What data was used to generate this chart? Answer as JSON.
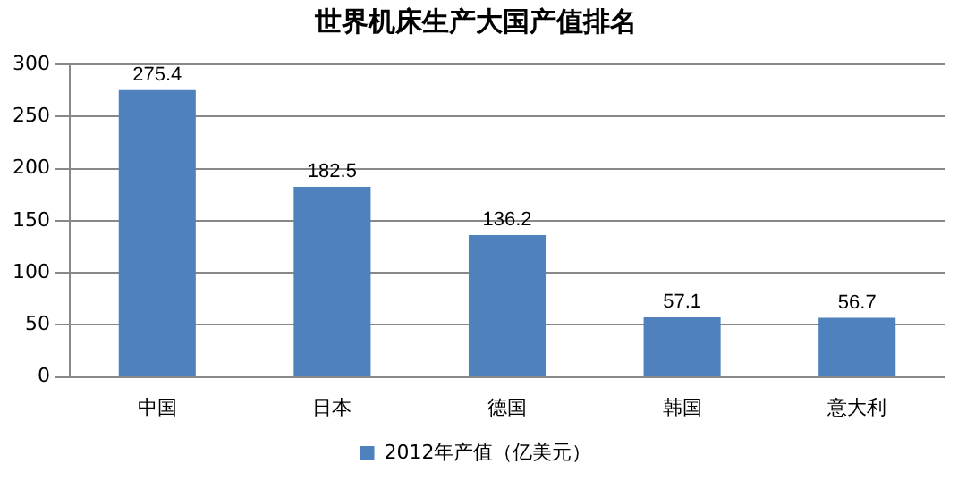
{
  "chart_data": {
    "type": "bar",
    "title": "世界机床生产大国产值排名",
    "categories": [
      "中国",
      "日本",
      "德国",
      "韩国",
      "意大利"
    ],
    "series": [
      {
        "name": "2012年产值（亿美元）",
        "color": "#4f81bd",
        "values": [
          275.4,
          182.5,
          136.2,
          57.1,
          56.7
        ]
      }
    ],
    "ylim": [
      0,
      300
    ],
    "yticks": [
      0,
      50,
      100,
      150,
      200,
      250,
      300
    ],
    "grid": "y",
    "legend": "bottom",
    "data_labels": true
  }
}
